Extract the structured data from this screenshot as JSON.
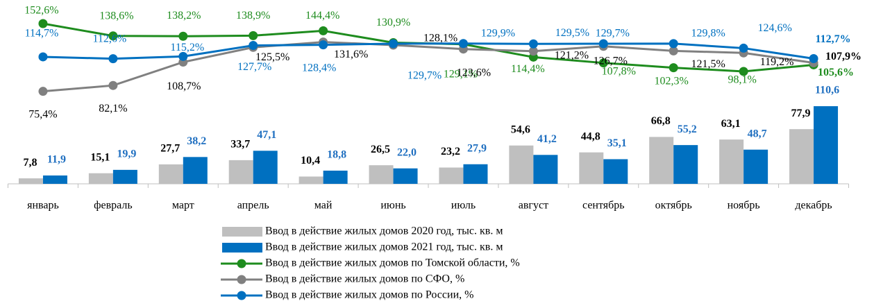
{
  "chart_data": {
    "type": "combo",
    "categories": [
      "январь",
      "февраль",
      "март",
      "апрель",
      "май",
      "июнь",
      "июль",
      "август",
      "сентябрь",
      "октябрь",
      "ноябрь",
      "декабрь"
    ],
    "ylim": [
      0,
      250
    ],
    "y2lim": [
      -30,
      170
    ],
    "series": [
      {
        "name": "Ввод в действие жилых домов 2020 год, тыс. кв. м",
        "type": "bar",
        "color": "#bfbfbf",
        "values": [
          7.8,
          15.1,
          27.7,
          33.7,
          10.4,
          26.5,
          23.2,
          54.6,
          44.8,
          66.8,
          63.1,
          77.9
        ],
        "value_labels": [
          "7,8",
          "15,1",
          "27,7",
          "33,7",
          "10,4",
          "26,5",
          "23,2",
          "54,6",
          "44,8",
          "66,8",
          "63,1",
          "77,9"
        ]
      },
      {
        "name": "Ввод в действие жилых домов 2021 год, тыс. кв. м",
        "type": "bar",
        "color": "#0070c0",
        "values": [
          11.9,
          19.9,
          38.2,
          47.1,
          18.8,
          22.0,
          27.9,
          41.2,
          35.1,
          55.2,
          48.7,
          110.6
        ],
        "value_labels": [
          "11,9",
          "19,9",
          "38,2",
          "47,1",
          "18,8",
          "22,0",
          "27,9",
          "41,2",
          "35,1",
          "55,2",
          "48,7",
          "110,6"
        ]
      },
      {
        "name": "Ввод в действие жилых домов по Томской области, %",
        "type": "line",
        "axis": "y2",
        "color": "#1e8c1e",
        "values": [
          152.6,
          138.6,
          138.2,
          138.9,
          144.4,
          130.9,
          129.1,
          114.4,
          107.8,
          102.3,
          98.1,
          105.6
        ],
        "value_labels": [
          "152,6%",
          "138,6%",
          "138,2%",
          "138,9%",
          "144,4%",
          "130,9%",
          "129,1%",
          "114,4%",
          "107,8%",
          "102,3%",
          "98,1%",
          "105,6%"
        ]
      },
      {
        "name": "Ввод в действие жилых домов по СФО, %",
        "type": "line",
        "axis": "y2",
        "color": "#808080",
        "values": [
          75.4,
          82.1,
          108.7,
          125.5,
          131.6,
          128.1,
          123.6,
          121.2,
          126.7,
          121.5,
          119.2,
          107.9
        ],
        "value_labels": [
          "75,4%",
          "82,1%",
          "108,7%",
          "125,5%",
          "131,6%",
          "128,1%",
          "123,6%",
          "121,2%",
          "126,7%",
          "121,5%",
          "119,2%",
          "107,9%"
        ]
      },
      {
        "name": "Ввод в действие жилых домов по России, %",
        "type": "line",
        "axis": "y2",
        "color": "#0070c0",
        "values": [
          114.7,
          112.6,
          115.2,
          127.7,
          128.4,
          129.7,
          129.9,
          129.5,
          129.7,
          129.8,
          124.6,
          112.7
        ],
        "value_labels": [
          "114,7%",
          "112,6%",
          "115,2%",
          "127,7%",
          "128,4%",
          "129,7%",
          "129,9%",
          "129,5%",
          "129,7%",
          "129,8%",
          "124,6%",
          "112,7%"
        ]
      }
    ]
  }
}
